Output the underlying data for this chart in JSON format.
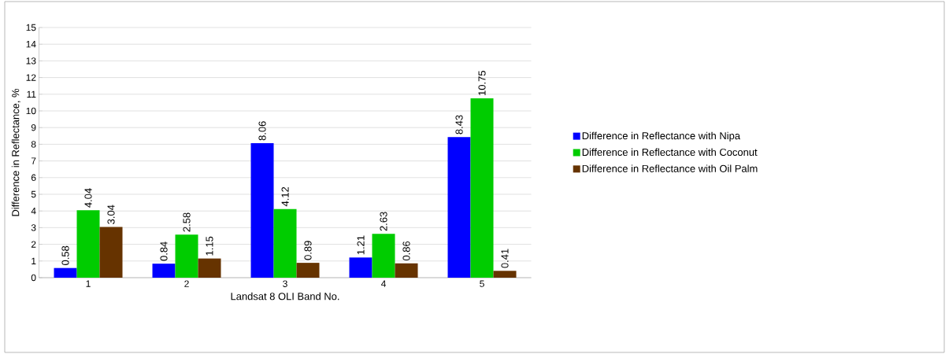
{
  "chart_data": {
    "type": "bar",
    "xlabel": "Landsat 8 OLI Band No.",
    "ylabel": "Difference in Reflectance, %",
    "categories": [
      "1",
      "2",
      "3",
      "4",
      "5"
    ],
    "series": [
      {
        "name": "Difference in Reflectance with Nipa",
        "color": "#0000ff",
        "values": [
          0.58,
          0.84,
          8.06,
          1.21,
          8.43
        ]
      },
      {
        "name": "Difference in Reflectance with Coconut",
        "color": "#00cc00",
        "values": [
          4.04,
          2.58,
          4.12,
          2.63,
          10.75
        ]
      },
      {
        "name": "Difference in Reflectance with Oil Palm",
        "color": "#663300",
        "values": [
          3.04,
          1.15,
          0.89,
          0.86,
          0.41
        ]
      }
    ],
    "ylim": [
      0,
      15
    ],
    "yticks": [
      0,
      1,
      2,
      3,
      4,
      5,
      6,
      7,
      8,
      9,
      10,
      11,
      12,
      13,
      14,
      15
    ],
    "grid": "y",
    "legend": "right",
    "data_labels": true
  }
}
